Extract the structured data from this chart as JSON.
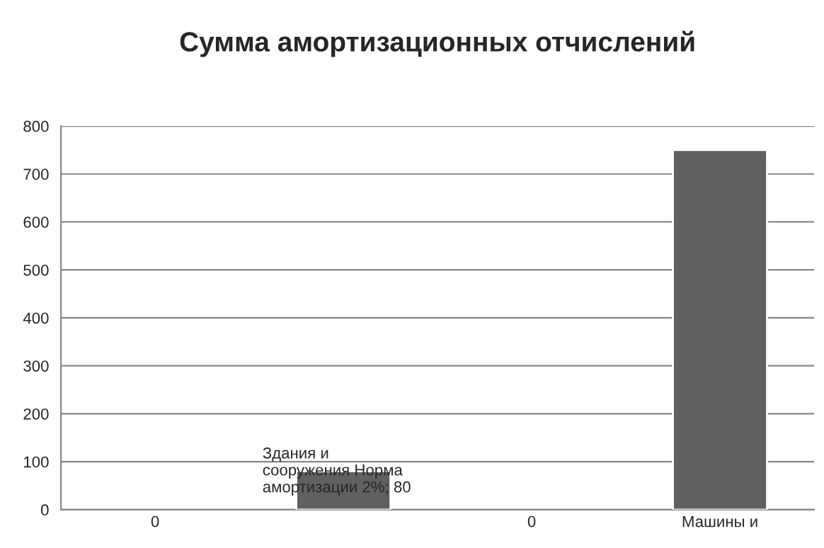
{
  "chart_data": {
    "type": "bar",
    "title": "Сумма амортизационных отчислений",
    "categories": [
      "0",
      null,
      "0",
      "Машины и"
    ],
    "values": [
      null,
      80,
      null,
      750
    ],
    "value_labels": [
      null,
      "Здания и\nсооружения Норма\nамортизации 2%; 80",
      null,
      null
    ],
    "color": "#606060",
    "ylim": [
      0,
      800
    ],
    "yticks": [
      0,
      100,
      200,
      300,
      400,
      500,
      600,
      700,
      800
    ],
    "grid": "y",
    "legend": false
  }
}
